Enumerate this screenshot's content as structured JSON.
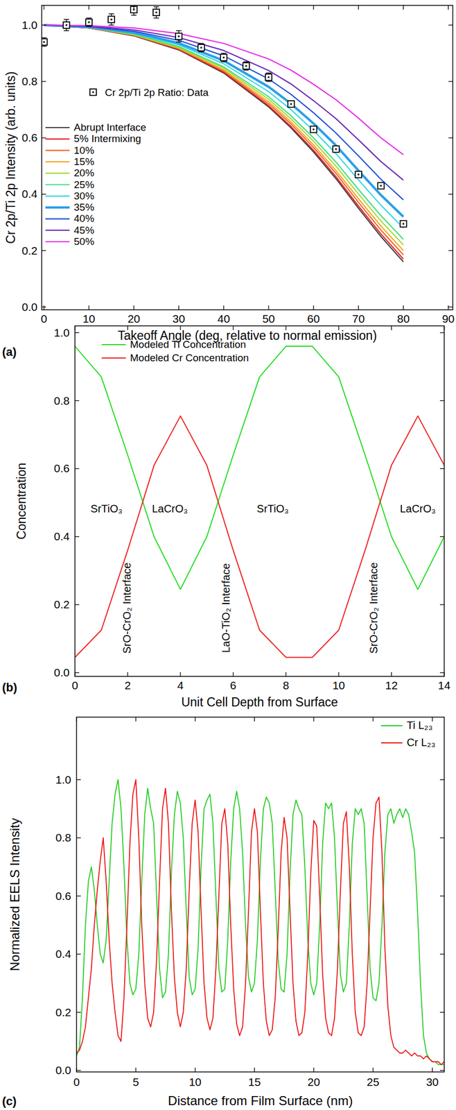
{
  "chart_data": [
    {
      "type": "line",
      "title": "(a)",
      "xlabel": "Takeoff Angle (deg, relative to normal emission)",
      "ylabel": "Cr 2p/Ti 2p Intensity (arb. units)",
      "x": [
        0,
        10,
        20,
        30,
        40,
        50,
        55,
        60,
        65,
        70,
        75,
        80
      ],
      "xlim": [
        -0.5,
        91
      ],
      "ylim": [
        -0.01,
        1.07
      ],
      "xticks": [
        0,
        10,
        20,
        30,
        40,
        50,
        60,
        70,
        80,
        90
      ],
      "yticks": [
        {
          "value": 0,
          "label": "0.0"
        },
        0.2,
        0.4,
        0.6,
        0.8,
        {
          "value": 1,
          "label": "1.0"
        }
      ],
      "grid": false,
      "legend": "upper left",
      "series": [
        {
          "name": "Cr 2p/Ti 2p Ratio: Data",
          "type": "scatter",
          "marker": "square",
          "color": "#000000",
          "x": [
            0,
            5,
            10,
            15,
            20,
            25,
            30,
            35,
            40,
            45,
            50,
            55,
            60,
            65,
            70,
            75,
            80
          ],
          "values": [
            0.94,
            1.0,
            1.01,
            1.02,
            1.055,
            1.045,
            0.96,
            0.92,
            0.885,
            0.855,
            0.815,
            0.72,
            0.63,
            0.56,
            0.47,
            0.43,
            0.295
          ],
          "errors": [
            0.015,
            0.02,
            0.015,
            0.02,
            0.02,
            0.02,
            0.02,
            0.015,
            0.015,
            0.015,
            0.015,
            0.01,
            0.01,
            0.01,
            0.01,
            0.01,
            0.01
          ]
        },
        {
          "name": "Abrupt Interface",
          "color": "#404040",
          "line_style": "solid",
          "values": [
            1.0,
            0.99,
            0.962,
            0.912,
            0.83,
            0.71,
            0.635,
            0.55,
            0.455,
            0.35,
            0.25,
            0.16
          ]
        },
        {
          "name": "5% Intermixing",
          "color": "#e8202a",
          "line_style": "solid",
          "values": [
            1.0,
            0.99,
            0.963,
            0.914,
            0.833,
            0.714,
            0.64,
            0.556,
            0.462,
            0.358,
            0.259,
            0.17
          ]
        },
        {
          "name": "10%",
          "color": "#f26522",
          "line_style": "solid",
          "values": [
            1.0,
            0.991,
            0.964,
            0.916,
            0.837,
            0.721,
            0.649,
            0.566,
            0.474,
            0.371,
            0.273,
            0.185
          ]
        },
        {
          "name": "15%",
          "color": "#f5a623",
          "line_style": "solid",
          "values": [
            1.0,
            0.991,
            0.965,
            0.918,
            0.841,
            0.728,
            0.657,
            0.575,
            0.484,
            0.384,
            0.287,
            0.2
          ]
        },
        {
          "name": "20%",
          "color": "#a8d834",
          "line_style": "solid",
          "values": [
            1.0,
            0.991,
            0.966,
            0.921,
            0.847,
            0.737,
            0.667,
            0.588,
            0.499,
            0.401,
            0.305,
            0.22
          ]
        },
        {
          "name": "25%",
          "color": "#3ee07e",
          "line_style": "solid",
          "values": [
            1.0,
            0.992,
            0.968,
            0.924,
            0.852,
            0.746,
            0.678,
            0.6,
            0.514,
            0.417,
            0.324,
            0.24
          ]
        },
        {
          "name": "30%",
          "color": "#33d6e8",
          "line_style": "solid",
          "values": [
            1.0,
            0.993,
            0.971,
            0.93,
            0.863,
            0.764,
            0.7,
            0.626,
            0.544,
            0.451,
            0.361,
            0.28
          ]
        },
        {
          "name": "35%",
          "color": "#2a9fe8",
          "line_style": "bold",
          "values": [
            1.0,
            0.993,
            0.974,
            0.936,
            0.874,
            0.781,
            0.721,
            0.651,
            0.573,
            0.484,
            0.397,
            0.32
          ]
        },
        {
          "name": "40%",
          "color": "#1f4fd8",
          "line_style": "solid",
          "values": [
            1.0,
            0.995,
            0.978,
            0.946,
            0.891,
            0.809,
            0.754,
            0.689,
            0.617,
            0.536,
            0.453,
            0.38
          ]
        },
        {
          "name": "45%",
          "color": "#6a2bb8",
          "line_style": "solid",
          "values": [
            1.0,
            0.996,
            0.983,
            0.956,
            0.91,
            0.839,
            0.791,
            0.732,
            0.668,
            0.593,
            0.516,
            0.45
          ]
        },
        {
          "name": "50%",
          "color": "#e830e8",
          "line_style": "solid",
          "values": [
            1.0,
            0.998,
            0.99,
            0.97,
            0.935,
            0.88,
            0.84,
            0.79,
            0.735,
            0.67,
            0.6,
            0.54
          ]
        }
      ]
    },
    {
      "type": "line",
      "title": "(b)",
      "xlabel": "Unit Cell Depth from Surface",
      "ylabel": "Concentration",
      "x": [
        0,
        1,
        2,
        3,
        4,
        5,
        6,
        7,
        8,
        9,
        10,
        11,
        12,
        13,
        14
      ],
      "xlim": [
        0,
        14
      ],
      "ylim": [
        -0.011,
        1.02
      ],
      "xticks": [
        0,
        2,
        4,
        6,
        8,
        10,
        12,
        14
      ],
      "yticks": [
        {
          "value": 0,
          "label": "0.0"
        },
        0.2,
        0.4,
        0.6,
        0.8,
        {
          "value": 1,
          "label": "1.0"
        }
      ],
      "grid": false,
      "legend": "upper left",
      "series": [
        {
          "name": "Modeled Ti Concentration",
          "color": "#22dd22",
          "line_style": "solid",
          "values": [
            0.96,
            0.87,
            0.64,
            0.4,
            0.245,
            0.4,
            0.64,
            0.87,
            0.96,
            0.96,
            0.87,
            0.64,
            0.4,
            0.245,
            0.4
          ]
        },
        {
          "name": "Modeled Cr Concentration",
          "color": "#ee2222",
          "line_style": "solid",
          "values": [
            0.045,
            0.125,
            0.36,
            0.61,
            0.755,
            0.61,
            0.36,
            0.125,
            0.045,
            0.045,
            0.125,
            0.36,
            0.61,
            0.755,
            0.61
          ]
        }
      ],
      "annotations": [
        {
          "text": "SrTiO₃",
          "x": 1.2,
          "y": 0.48
        },
        {
          "text": "LaCrO₃",
          "x": 3.6,
          "y": 0.48
        },
        {
          "text": "SrTiO₃",
          "x": 7.5,
          "y": 0.48
        },
        {
          "text": "LaCrO₃",
          "x": 13.0,
          "y": 0.48
        }
      ],
      "interfaces": [
        {
          "text": "SrO-CrO₂ Interface",
          "x": 2.0,
          "y": 0.19
        },
        {
          "text": "LaO-TiO₂ Interface",
          "x": 5.75,
          "y": 0.19
        },
        {
          "text": "SrO-CrO₂ Interface",
          "x": 11.35,
          "y": 0.19
        }
      ]
    },
    {
      "type": "line",
      "title": "(c)",
      "xlabel": "Distance from Film Surface (nm)",
      "ylabel": "Normalized EELS Intensity",
      "x": [
        0,
        0.25,
        0.5,
        0.75,
        1,
        1.25,
        1.5,
        1.75,
        2,
        2.25,
        2.5,
        2.75,
        3,
        3.25,
        3.5,
        3.75,
        4,
        4.25,
        4.5,
        4.75,
        5,
        5.25,
        5.5,
        5.75,
        6,
        6.25,
        6.5,
        6.75,
        7,
        7.25,
        7.5,
        7.75,
        8,
        8.25,
        8.5,
        8.75,
        9,
        9.25,
        9.5,
        9.75,
        10,
        10.25,
        10.5,
        10.75,
        11,
        11.25,
        11.5,
        11.75,
        12,
        12.25,
        12.5,
        12.75,
        13,
        13.25,
        13.5,
        13.75,
        14,
        14.25,
        14.5,
        14.75,
        15,
        15.25,
        15.5,
        15.75,
        16,
        16.25,
        16.5,
        16.75,
        17,
        17.25,
        17.5,
        17.75,
        18,
        18.25,
        18.5,
        18.75,
        19,
        19.25,
        19.5,
        19.75,
        20,
        20.25,
        20.5,
        20.75,
        21,
        21.25,
        21.5,
        21.75,
        22,
        22.25,
        22.5,
        22.75,
        23,
        23.25,
        23.5,
        23.75,
        24,
        24.25,
        24.5,
        24.75,
        25,
        25.25,
        25.5,
        25.75,
        26,
        26.25,
        26.5,
        26.75,
        27,
        27.25,
        27.5,
        27.75,
        28,
        28.25,
        28.5,
        28.75,
        29,
        29.25,
        29.5,
        29.75,
        30,
        30.25,
        30.5,
        30.75,
        31
      ],
      "xlim": [
        0,
        31
      ],
      "ylim": [
        -0.005,
        1.215
      ],
      "xticks": [
        0,
        5,
        10,
        15,
        20,
        25,
        30
      ],
      "yticks": [
        {
          "value": 0,
          "label": "0.0"
        },
        0.2,
        0.4,
        0.6,
        0.8,
        {
          "value": 1,
          "label": "1.0"
        }
      ],
      "grid": false,
      "legend": "upper right",
      "series": [
        {
          "name": "Ti L₂₃",
          "color": "#22cc22",
          "line_style": "solid",
          "values": [
            0.05,
            0.08,
            0.25,
            0.5,
            0.65,
            0.7,
            0.62,
            0.5,
            0.4,
            0.37,
            0.45,
            0.65,
            0.85,
            0.95,
            1.0,
            0.9,
            0.7,
            0.45,
            0.3,
            0.26,
            0.28,
            0.4,
            0.65,
            0.88,
            0.97,
            0.9,
            0.85,
            0.6,
            0.35,
            0.25,
            0.27,
            0.4,
            0.68,
            0.88,
            0.96,
            0.92,
            0.8,
            0.55,
            0.32,
            0.26,
            0.28,
            0.42,
            0.7,
            0.9,
            0.93,
            0.95,
            0.85,
            0.6,
            0.35,
            0.27,
            0.28,
            0.45,
            0.72,
            0.9,
            0.96,
            0.9,
            0.75,
            0.5,
            0.32,
            0.27,
            0.3,
            0.45,
            0.72,
            0.9,
            0.94,
            0.92,
            0.85,
            0.62,
            0.38,
            0.28,
            0.27,
            0.4,
            0.68,
            0.88,
            0.93,
            0.9,
            0.88,
            0.7,
            0.45,
            0.3,
            0.26,
            0.3,
            0.5,
            0.78,
            0.92,
            0.9,
            0.92,
            0.8,
            0.55,
            0.33,
            0.27,
            0.3,
            0.5,
            0.78,
            0.9,
            0.88,
            0.9,
            0.85,
            0.6,
            0.35,
            0.25,
            0.24,
            0.3,
            0.5,
            0.75,
            0.88,
            0.9,
            0.85,
            0.88,
            0.9,
            0.87,
            0.9,
            0.88,
            0.82,
            0.75,
            0.55,
            0.3,
            0.12,
            0.06,
            0.04,
            0.03,
            0.03,
            0.02,
            0.02,
            0.02
          ]
        },
        {
          "name": "Cr L₂₃",
          "color": "#ee1111",
          "line_style": "solid",
          "values": [
            0.06,
            0.07,
            0.1,
            0.15,
            0.25,
            0.35,
            0.5,
            0.62,
            0.72,
            0.8,
            0.65,
            0.45,
            0.3,
            0.2,
            0.12,
            0.1,
            0.25,
            0.5,
            0.78,
            0.95,
            1.0,
            0.8,
            0.5,
            0.3,
            0.18,
            0.15,
            0.2,
            0.38,
            0.65,
            0.9,
            0.97,
            0.85,
            0.55,
            0.32,
            0.2,
            0.15,
            0.2,
            0.35,
            0.62,
            0.85,
            0.93,
            0.82,
            0.55,
            0.3,
            0.18,
            0.14,
            0.18,
            0.35,
            0.6,
            0.85,
            0.9,
            0.78,
            0.5,
            0.28,
            0.16,
            0.12,
            0.15,
            0.3,
            0.55,
            0.82,
            0.9,
            0.82,
            0.55,
            0.3,
            0.17,
            0.12,
            0.14,
            0.25,
            0.48,
            0.75,
            0.87,
            0.8,
            0.55,
            0.3,
            0.17,
            0.12,
            0.13,
            0.2,
            0.4,
            0.68,
            0.86,
            0.84,
            0.6,
            0.33,
            0.18,
            0.13,
            0.12,
            0.18,
            0.35,
            0.62,
            0.85,
            0.89,
            0.7,
            0.4,
            0.2,
            0.13,
            0.12,
            0.15,
            0.3,
            0.55,
            0.8,
            0.92,
            0.94,
            0.75,
            0.42,
            0.22,
            0.12,
            0.08,
            0.07,
            0.06,
            0.06,
            0.07,
            0.06,
            0.05,
            0.06,
            0.05,
            0.05,
            0.04,
            0.05,
            0.04,
            0.03,
            0.03,
            0.03,
            0.02,
            0.03
          ]
        }
      ]
    }
  ]
}
